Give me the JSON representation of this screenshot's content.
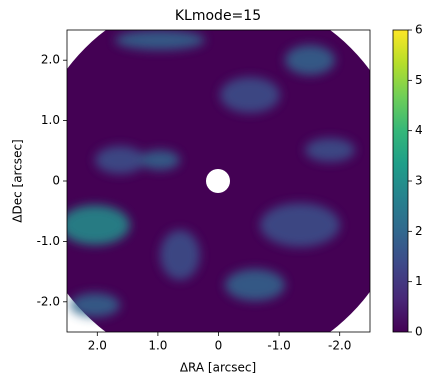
{
  "chart_data": {
    "type": "image",
    "title": "KLmode=15",
    "x_label": "ΔRA [arcsec]",
    "y_label": "ΔDec [arcsec]",
    "xlim": [
      2.5,
      -2.5
    ],
    "ylim": [
      -2.5,
      2.5
    ],
    "xticks": [
      {
        "value": 2,
        "label": "2.0"
      },
      {
        "value": 1,
        "label": "1.0"
      },
      0,
      {
        "value": -1,
        "label": "-1.0"
      },
      {
        "value": -2,
        "label": "-2.0"
      }
    ],
    "yticks": [
      {
        "value": -2,
        "label": "-2.0"
      },
      {
        "value": -1,
        "label": "-1.0"
      },
      0,
      {
        "value": 1,
        "label": "1.0"
      },
      {
        "value": 2,
        "label": "2.0"
      }
    ],
    "colormap": "viridis",
    "clim": [
      0,
      6
    ],
    "cticks": [
      0,
      1,
      2,
      3,
      4,
      5,
      6
    ]
  }
}
